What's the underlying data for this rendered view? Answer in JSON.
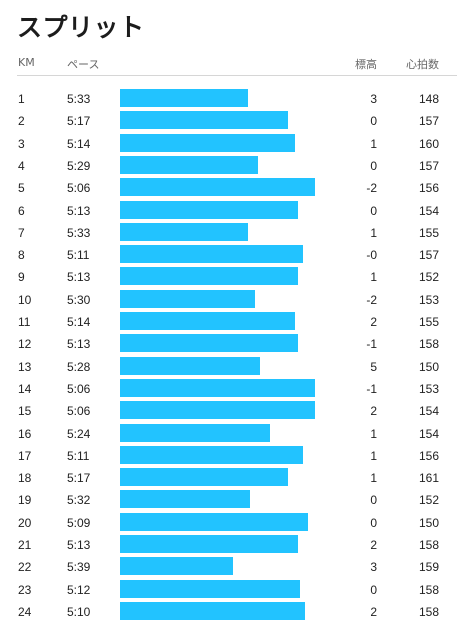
{
  "page": {
    "title": "スプリット",
    "columns": {
      "km": "KM",
      "pace": "ペース",
      "elevation": "標高",
      "heart_rate": "心拍数"
    }
  },
  "colors": {
    "bar": "#22c3ff",
    "text": "#222222",
    "header_text": "#666666",
    "rule": "#d6d6d6"
  },
  "chart_data": {
    "type": "bar",
    "orientation": "horizontal",
    "title": "スプリット",
    "bar_scale_note": "bar length inversely tracks pace (faster pace = longer bar)",
    "rows": [
      {
        "km": "1",
        "pace": "5:33",
        "elevation": "3",
        "heart_rate": "148"
      },
      {
        "km": "2",
        "pace": "5:17",
        "elevation": "0",
        "heart_rate": "157"
      },
      {
        "km": "3",
        "pace": "5:14",
        "elevation": "1",
        "heart_rate": "160"
      },
      {
        "km": "4",
        "pace": "5:29",
        "elevation": "0",
        "heart_rate": "157"
      },
      {
        "km": "5",
        "pace": "5:06",
        "elevation": "-2",
        "heart_rate": "156"
      },
      {
        "km": "6",
        "pace": "5:13",
        "elevation": "0",
        "heart_rate": "154"
      },
      {
        "km": "7",
        "pace": "5:33",
        "elevation": "1",
        "heart_rate": "155"
      },
      {
        "km": "8",
        "pace": "5:11",
        "elevation": "-0",
        "heart_rate": "157"
      },
      {
        "km": "9",
        "pace": "5:13",
        "elevation": "1",
        "heart_rate": "152"
      },
      {
        "km": "10",
        "pace": "5:30",
        "elevation": "-2",
        "heart_rate": "153"
      },
      {
        "km": "11",
        "pace": "5:14",
        "elevation": "2",
        "heart_rate": "155"
      },
      {
        "km": "12",
        "pace": "5:13",
        "elevation": "-1",
        "heart_rate": "158"
      },
      {
        "km": "13",
        "pace": "5:28",
        "elevation": "5",
        "heart_rate": "150"
      },
      {
        "km": "14",
        "pace": "5:06",
        "elevation": "-1",
        "heart_rate": "153"
      },
      {
        "km": "15",
        "pace": "5:06",
        "elevation": "2",
        "heart_rate": "154"
      },
      {
        "km": "16",
        "pace": "5:24",
        "elevation": "1",
        "heart_rate": "154"
      },
      {
        "km": "17",
        "pace": "5:11",
        "elevation": "1",
        "heart_rate": "156"
      },
      {
        "km": "18",
        "pace": "5:17",
        "elevation": "1",
        "heart_rate": "161"
      },
      {
        "km": "19",
        "pace": "5:32",
        "elevation": "0",
        "heart_rate": "152"
      },
      {
        "km": "20",
        "pace": "5:09",
        "elevation": "0",
        "heart_rate": "150"
      },
      {
        "km": "21",
        "pace": "5:13",
        "elevation": "2",
        "heart_rate": "158"
      },
      {
        "km": "22",
        "pace": "5:39",
        "elevation": "3",
        "heart_rate": "159"
      },
      {
        "km": "23",
        "pace": "5:12",
        "elevation": "0",
        "heart_rate": "158"
      },
      {
        "km": "24",
        "pace": "5:10",
        "elevation": "2",
        "heart_rate": "158"
      }
    ]
  }
}
